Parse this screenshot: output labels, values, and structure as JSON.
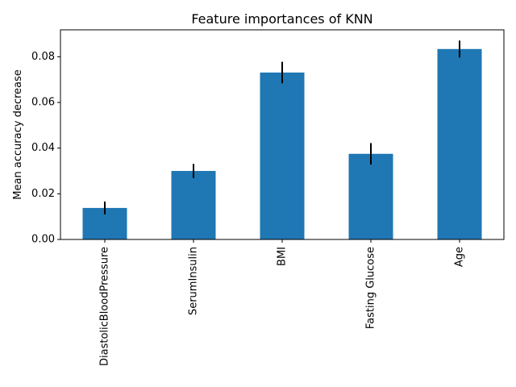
{
  "chart_data": {
    "type": "bar",
    "title": "Feature importances of KNN",
    "xlabel": "",
    "ylabel": "Mean accuracy decrease",
    "categories": [
      "DiastolicBloodPressure",
      "SerumInsulin",
      "BMI",
      "Fasting Glucose",
      "Age"
    ],
    "values": [
      0.0138,
      0.03,
      0.0731,
      0.0375,
      0.0834
    ],
    "errors": [
      0.0028,
      0.0031,
      0.0047,
      0.0047,
      0.0037
    ],
    "ylim": [
      0,
      0.0918
    ],
    "yticks": [
      0.0,
      0.02,
      0.04,
      0.06,
      0.08
    ],
    "ytick_labels": [
      "0.00",
      "0.02",
      "0.04",
      "0.06",
      "0.08"
    ],
    "grid": false,
    "bar_color": "#1f77b4",
    "error_color": "#000000"
  }
}
